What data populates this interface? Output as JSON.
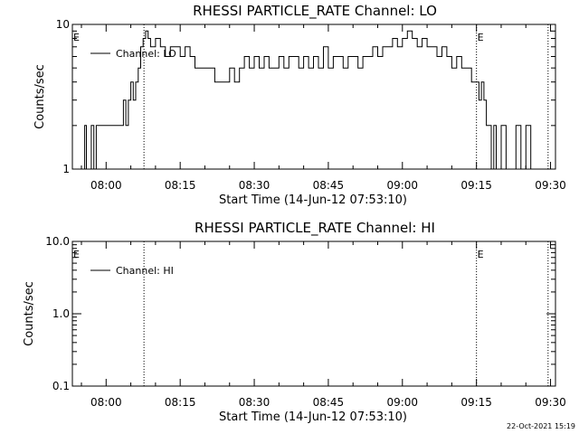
{
  "timestamp": "22-Oct-2021 15:19",
  "colors": {
    "background": "#ffffff",
    "ink": "#000000"
  },
  "chart_data": [
    {
      "type": "line",
      "title": "RHESSI PARTICLE_RATE Channel: LO",
      "xlabel": "Start Time (14-Jun-12 07:53:10)",
      "ylabel": "Counts/sec",
      "yscale": "log",
      "ylim": [
        1,
        10
      ],
      "ytick_values": [
        1,
        10
      ],
      "ytick_labels": [
        "1",
        "10"
      ],
      "xlim": [
        "07:53:10",
        "09:31:00"
      ],
      "xtick_values": [
        "08:00",
        "08:15",
        "08:30",
        "08:45",
        "09:00",
        "09:15",
        "09:30"
      ],
      "xtick_labels": [
        "08:00",
        "08:15",
        "08:30",
        "08:45",
        "09:00",
        "09:15",
        "09:30"
      ],
      "legend": {
        "entries": [
          "Channel: LO"
        ],
        "placement": "top-left"
      },
      "grid": false,
      "event_markers": [
        {
          "time": "07:53:10",
          "label": "E"
        },
        {
          "time": "09:15:00",
          "label": "E"
        }
      ],
      "vertical_dotted_lines": [
        "08:07:40",
        "09:15:00",
        "09:29:30"
      ],
      "series": [
        {
          "name": "Channel: LO",
          "x": [
            "07:55",
            "07:55:40",
            "07:56",
            "07:57",
            "07:57:30",
            "07:58",
            "07:59",
            "08:00",
            "08:01",
            "08:02",
            "08:03",
            "08:03:30",
            "08:04",
            "08:04:30",
            "08:05",
            "08:05:30",
            "08:06",
            "08:06:30",
            "08:07",
            "08:07:30",
            "08:08",
            "08:08:30",
            "08:09",
            "08:10",
            "08:11",
            "08:12",
            "08:13",
            "08:14",
            "08:15",
            "08:16",
            "08:17",
            "08:18",
            "08:19",
            "08:20",
            "08:21",
            "08:22",
            "08:23",
            "08:24",
            "08:25",
            "08:26",
            "08:27",
            "08:28",
            "08:29",
            "08:30",
            "08:31",
            "08:32",
            "08:33",
            "08:34",
            "08:35",
            "08:36",
            "08:37",
            "08:38",
            "08:39",
            "08:40",
            "08:41",
            "08:42",
            "08:43",
            "08:44",
            "08:45",
            "08:46",
            "08:47",
            "08:48",
            "08:49",
            "08:50",
            "08:51",
            "08:52",
            "08:53",
            "08:54",
            "08:55",
            "08:56",
            "08:57",
            "08:58",
            "08:59",
            "09:00",
            "09:01",
            "09:02",
            "09:03",
            "09:04",
            "09:05",
            "09:06",
            "09:07",
            "09:08",
            "09:09",
            "09:10",
            "09:11",
            "09:12",
            "09:13",
            "09:14",
            "09:15",
            "09:15:30",
            "09:16",
            "09:16:30",
            "09:17",
            "09:17:30",
            "09:18",
            "09:18:30",
            "09:19",
            "09:20",
            "09:21",
            "09:22",
            "09:23",
            "09:24",
            "09:25",
            "09:26",
            "09:27"
          ],
          "values": [
            1,
            2,
            1,
            2,
            1,
            2,
            2,
            2,
            2,
            2,
            2,
            3,
            2,
            3,
            4,
            3,
            4,
            5,
            7,
            8,
            9,
            8,
            7,
            8,
            7,
            6,
            7,
            7,
            6,
            7,
            6,
            5,
            5,
            5,
            5,
            4,
            4,
            4,
            5,
            4,
            5,
            6,
            5,
            6,
            5,
            6,
            5,
            5,
            6,
            5,
            6,
            6,
            5,
            6,
            5,
            6,
            5,
            7,
            5,
            6,
            6,
            5,
            6,
            6,
            5,
            6,
            6,
            7,
            6,
            7,
            7,
            8,
            7,
            8,
            9,
            8,
            7,
            8,
            7,
            7,
            6,
            7,
            6,
            5,
            6,
            5,
            5,
            4,
            4,
            3,
            4,
            3,
            2,
            2,
            1,
            2,
            1,
            2,
            1,
            1,
            2,
            1,
            2,
            1,
            1
          ]
        }
      ]
    },
    {
      "type": "line",
      "title": "RHESSI PARTICLE_RATE Channel: HI",
      "xlabel": "Start Time (14-Jun-12 07:53:10)",
      "ylabel": "Counts/sec",
      "yscale": "log",
      "ylim": [
        0.1,
        10
      ],
      "ytick_values": [
        0.1,
        1,
        10
      ],
      "ytick_labels": [
        "0.1",
        "1.0",
        "10.0"
      ],
      "xlim": [
        "07:53:10",
        "09:31:00"
      ],
      "xtick_values": [
        "08:00",
        "08:15",
        "08:30",
        "08:45",
        "09:00",
        "09:15",
        "09:30"
      ],
      "xtick_labels": [
        "08:00",
        "08:15",
        "08:30",
        "08:45",
        "09:00",
        "09:15",
        "09:30"
      ],
      "legend": {
        "entries": [
          "Channel: HI"
        ],
        "placement": "top-left"
      },
      "grid": false,
      "event_markers": [
        {
          "time": "07:53:10",
          "label": "E"
        },
        {
          "time": "09:15:00",
          "label": "E"
        }
      ],
      "vertical_dotted_lines": [
        "08:07:40",
        "09:15:00",
        "09:29:30"
      ],
      "series": [
        {
          "name": "Channel: HI",
          "x": [],
          "values": []
        }
      ]
    }
  ]
}
